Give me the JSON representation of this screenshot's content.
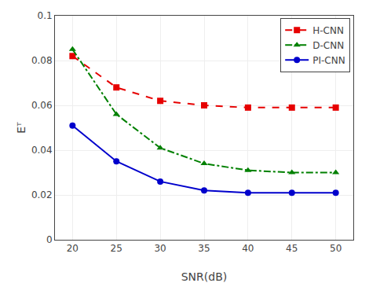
{
  "chart_data": {
    "type": "line",
    "xlabel": "SNR(dB)",
    "ylabel": "Eᵀ",
    "x": [
      20,
      25,
      30,
      35,
      40,
      45,
      50
    ],
    "series": [
      {
        "name": "H-CNN",
        "color": "#e60000",
        "line_style": "dashed",
        "marker": "square",
        "values": [
          0.082,
          0.068,
          0.062,
          0.06,
          0.059,
          0.059,
          0.059
        ]
      },
      {
        "name": "D-CNN",
        "color": "#008000",
        "line_style": "dashdot",
        "marker": "triangle",
        "values": [
          0.085,
          0.056,
          0.041,
          0.034,
          0.031,
          0.03,
          0.03
        ]
      },
      {
        "name": "PI-CNN",
        "color": "#0000cc",
        "line_style": "solid",
        "marker": "circle",
        "values": [
          0.051,
          0.035,
          0.026,
          0.022,
          0.021,
          0.021,
          0.021
        ]
      }
    ],
    "xlim": [
      18,
      52
    ],
    "xticks": [
      20,
      25,
      30,
      35,
      40,
      45,
      50
    ],
    "ylim": [
      0,
      0.1
    ],
    "yticks": [
      0,
      0.02,
      0.04,
      0.06,
      0.08,
      0.1
    ],
    "grid": true,
    "legend": "upper right"
  }
}
